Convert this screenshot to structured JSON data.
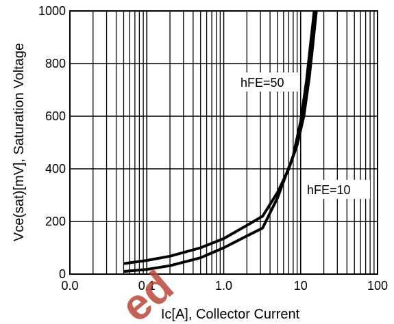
{
  "chart_data": {
    "type": "line",
    "xlabel": "Ic[A], Collector Current",
    "ylabel": "Vce(sat)[mV], Saturation Voltage",
    "x_scale": "log",
    "xlim": [
      0.01,
      100
    ],
    "ylim": [
      0,
      1000
    ],
    "x_tick_labels": [
      "0.0",
      "0.1",
      "1.0",
      "10",
      "100"
    ],
    "y_ticks": [
      0,
      200,
      400,
      600,
      800,
      1000
    ],
    "y_tick_labels": [
      "0",
      "200",
      "400",
      "600",
      "800",
      "1000"
    ],
    "grid": true,
    "series": [
      {
        "name": "hFE=50",
        "x": [
          0.05,
          0.1,
          0.2,
          0.5,
          1.0,
          2.0,
          3.2,
          5.0,
          8.0,
          10.0,
          12.0,
          13.5,
          14.5,
          15.0
        ],
        "y": [
          10,
          18,
          32,
          62,
          100,
          145,
          175,
          290,
          450,
          580,
          740,
          880,
          960,
          1000
        ]
      },
      {
        "name": "hFE=10",
        "x": [
          0.05,
          0.1,
          0.2,
          0.5,
          1.0,
          2.0,
          3.2,
          5.0,
          7.0,
          9.0,
          11.0,
          13.0,
          14.5,
          16.0
        ],
        "y": [
          40,
          52,
          68,
          100,
          135,
          185,
          220,
          310,
          400,
          490,
          600,
          750,
          880,
          1000
        ]
      }
    ]
  },
  "watermark": {
    "text": "ed",
    "color": "#b9483c"
  }
}
